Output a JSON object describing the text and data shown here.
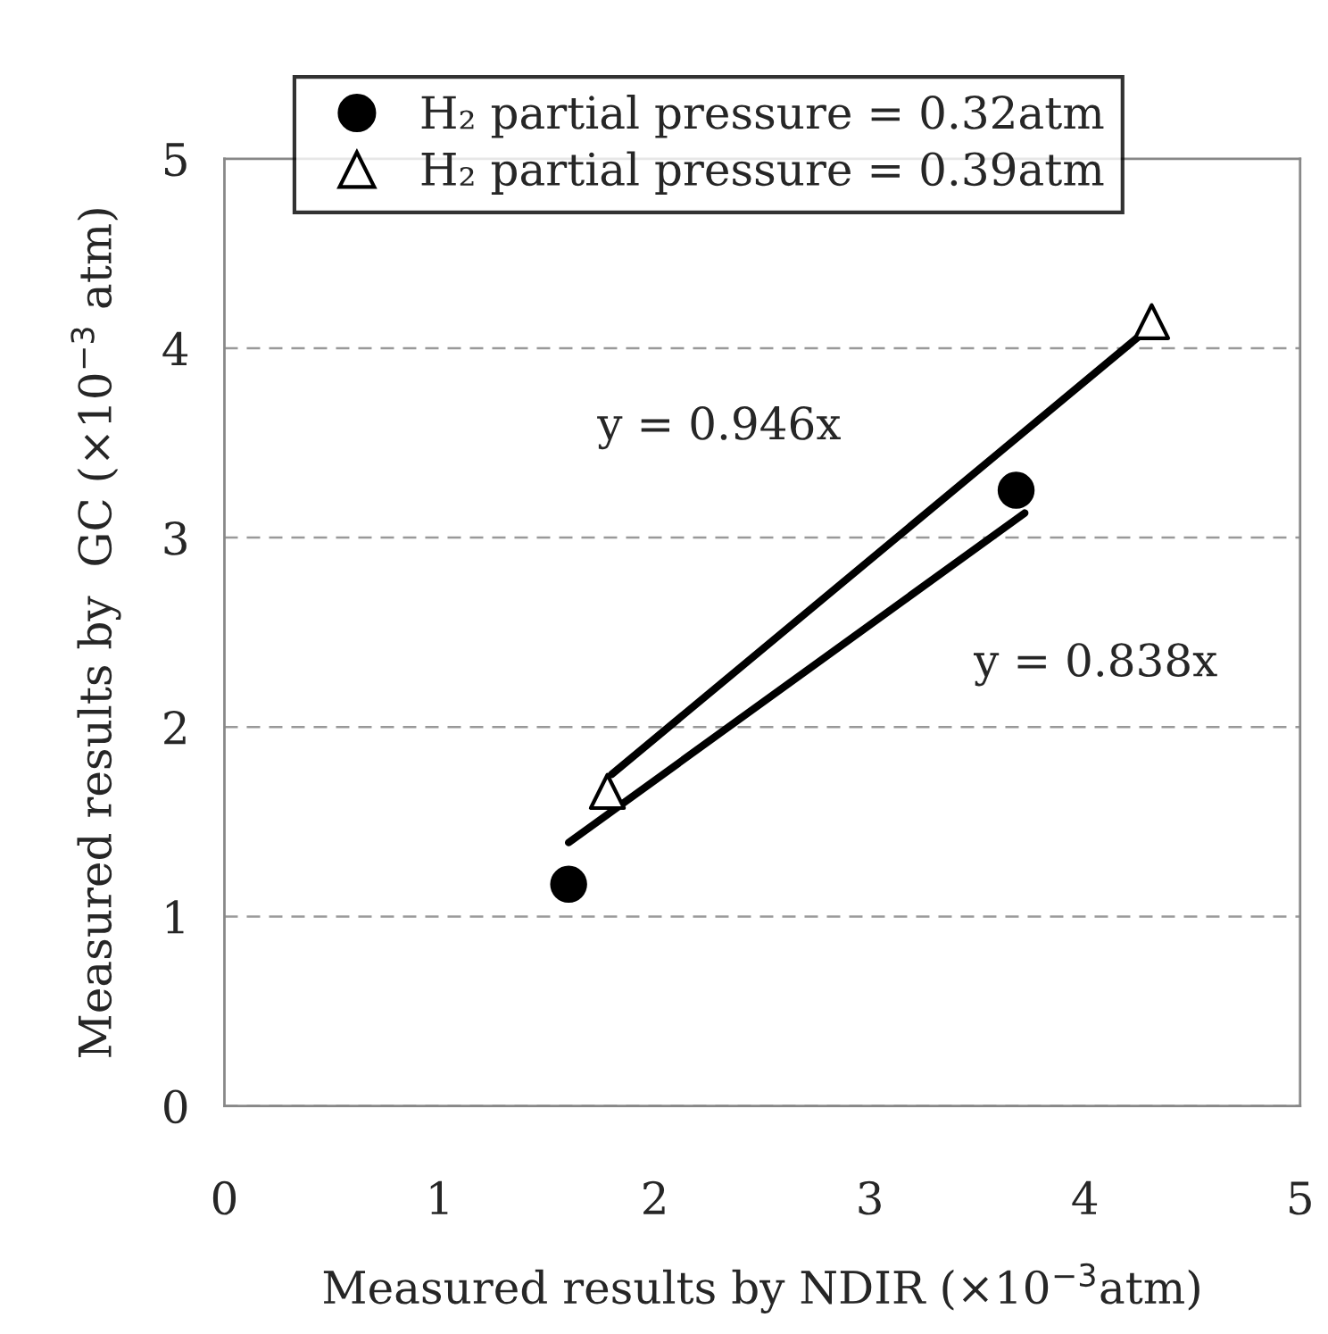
{
  "chart_data": {
    "type": "scatter",
    "xlabel": "Measured results by NDIR (×10$^{−3}$atm)",
    "ylabel": "Measured results by  GC (×10$^{−3}$ atm)",
    "series": [
      {
        "name": "H₂ partial pressure = 0.32atm",
        "color": "#000000",
        "marker": "circle",
        "x": [
          1.6,
          3.68
        ],
        "values": [
          1.17,
          3.25
        ]
      },
      {
        "name": "H₂ partial pressure = 0.39atm",
        "color": "#000000",
        "marker": "triangle",
        "x": [
          1.78,
          4.31
        ],
        "values": [
          1.66,
          4.14
        ]
      },
      {
        "type": "line",
        "color": "#000000",
        "x": [
          1.6,
          3.72
        ],
        "values": [
          1.39,
          3.13
        ]
      },
      {
        "type": "line",
        "color": "#000000",
        "x": [
          1.8,
          4.27
        ],
        "values": [
          1.75,
          4.08
        ]
      }
    ],
    "annotations": [
      "y = 0.946x",
      "y = 0.838x"
    ],
    "xlim": [
      0,
      5
    ],
    "xticks": [
      0,
      1,
      2,
      3,
      4,
      5
    ],
    "ylim": [
      0,
      5
    ],
    "yticks": [
      0,
      1,
      2,
      3,
      4,
      5
    ],
    "grid": "y",
    "legend": "top"
  }
}
